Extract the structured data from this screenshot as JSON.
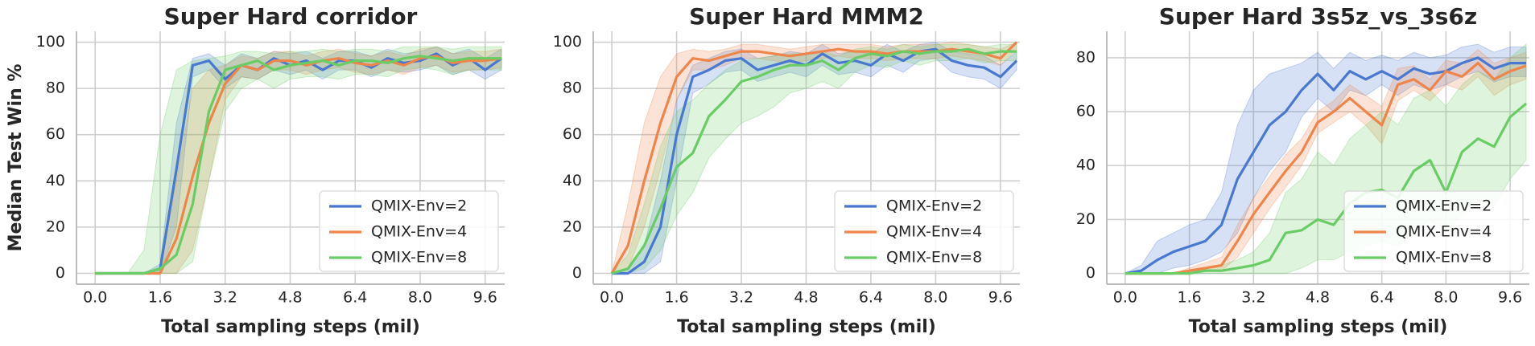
{
  "chart_data": [
    {
      "type": "line",
      "title": "Super Hard corridor",
      "xlabel": "Total sampling steps (mil)",
      "ylabel": "Median Test Win %",
      "x": [
        0,
        0.4,
        0.8,
        1.2,
        1.6,
        2.0,
        2.4,
        2.8,
        3.2,
        3.6,
        4.0,
        4.4,
        4.8,
        5.2,
        5.6,
        6.0,
        6.4,
        6.8,
        7.2,
        7.6,
        8.0,
        8.4,
        8.8,
        9.2,
        9.6,
        10.0
      ],
      "xlim": [
        -0.46,
        10.08
      ],
      "ylim": [
        -4.7,
        104.7
      ],
      "xticks": [
        {
          "value": 0,
          "label": "0.0"
        },
        1.6,
        3.2,
        4.8,
        6.4,
        {
          "value": 8,
          "label": "8.0"
        },
        9.6
      ],
      "yticks": [
        0,
        20,
        40,
        60,
        80,
        100
      ],
      "grid": true,
      "legend": "lower right",
      "series": [
        {
          "name": "QMIX-Env=2",
          "color": "#4878d0",
          "values": [
            0,
            0,
            0,
            0,
            2,
            45,
            90,
            92,
            84,
            90,
            88,
            93,
            90,
            92,
            88,
            92,
            92,
            89,
            93,
            91,
            92,
            95,
            90,
            93,
            88,
            93
          ],
          "lower": [
            0,
            0,
            0,
            0,
            0,
            20,
            85,
            88,
            80,
            85,
            84,
            88,
            86,
            88,
            84,
            88,
            88,
            85,
            88,
            87,
            88,
            90,
            86,
            88,
            84,
            88
          ],
          "upper": [
            0,
            0,
            0,
            0,
            4,
            65,
            93,
            95,
            90,
            95,
            93,
            96,
            95,
            96,
            93,
            96,
            96,
            94,
            97,
            95,
            96,
            98,
            95,
            97,
            93,
            97
          ]
        },
        {
          "name": "QMIX-Env=4",
          "color": "#ee854a",
          "values": [
            0,
            0,
            0,
            0,
            0,
            15,
            42,
            65,
            82,
            90,
            88,
            92,
            92,
            90,
            92,
            93,
            91,
            90,
            92,
            90,
            93,
            94,
            91,
            92,
            92,
            93
          ],
          "lower": [
            0,
            0,
            0,
            0,
            0,
            0,
            10,
            40,
            75,
            85,
            84,
            88,
            88,
            86,
            88,
            89,
            87,
            86,
            88,
            86,
            89,
            90,
            87,
            88,
            88,
            89
          ],
          "upper": [
            0,
            0,
            0,
            0,
            2,
            40,
            80,
            88,
            90,
            94,
            93,
            96,
            96,
            94,
            96,
            97,
            95,
            94,
            96,
            94,
            97,
            98,
            95,
            96,
            96,
            97
          ]
        },
        {
          "name": "QMIX-Env=8",
          "color": "#6acc64",
          "values": [
            0,
            0,
            0,
            0,
            2,
            8,
            30,
            70,
            88,
            90,
            92,
            88,
            90,
            91,
            92,
            90,
            92,
            92,
            91,
            93,
            94,
            93,
            92,
            93,
            93,
            93
          ],
          "lower": [
            0,
            0,
            0,
            0,
            0,
            0,
            5,
            40,
            70,
            80,
            84,
            80,
            84,
            85,
            85,
            84,
            86,
            86,
            85,
            88,
            89,
            88,
            86,
            88,
            88,
            88
          ],
          "upper": [
            0,
            0,
            0,
            10,
            60,
            88,
            92,
            93,
            94,
            96,
            96,
            95,
            96,
            96,
            97,
            96,
            97,
            97,
            96,
            98,
            98,
            98,
            97,
            98,
            98,
            98
          ]
        }
      ]
    },
    {
      "type": "line",
      "title": "Super Hard MMM2",
      "xlabel": "Total sampling steps (mil)",
      "x": [
        0,
        0.4,
        0.8,
        1.2,
        1.6,
        2.0,
        2.4,
        2.8,
        3.2,
        3.6,
        4.0,
        4.4,
        4.8,
        5.2,
        5.6,
        6.0,
        6.4,
        6.8,
        7.2,
        7.6,
        8.0,
        8.4,
        8.8,
        9.2,
        9.6,
        10.0
      ],
      "xlim": [
        -0.46,
        10.08
      ],
      "ylim": [
        -4.7,
        104.7
      ],
      "xticks": [
        {
          "value": 0,
          "label": "0.0"
        },
        1.6,
        3.2,
        4.8,
        6.4,
        {
          "value": 8,
          "label": "8.0"
        },
        9.6
      ],
      "yticks": [
        0,
        20,
        40,
        60,
        80,
        100
      ],
      "grid": true,
      "legend": "lower right",
      "series": [
        {
          "name": "QMIX-Env=2",
          "color": "#4878d0",
          "values": [
            0,
            0,
            5,
            20,
            60,
            85,
            88,
            92,
            93,
            88,
            90,
            92,
            90,
            95,
            91,
            92,
            90,
            95,
            92,
            96,
            97,
            92,
            90,
            89,
            85,
            92
          ],
          "lower": [
            0,
            0,
            0,
            5,
            40,
            78,
            82,
            87,
            88,
            83,
            85,
            87,
            85,
            90,
            86,
            87,
            85,
            90,
            87,
            92,
            93,
            87,
            85,
            84,
            80,
            88
          ],
          "upper": [
            0,
            2,
            12,
            40,
            75,
            90,
            93,
            96,
            97,
            93,
            94,
            96,
            95,
            99,
            95,
            96,
            95,
            99,
            96,
            99,
            100,
            96,
            95,
            94,
            90,
            96
          ]
        },
        {
          "name": "QMIX-Env=4",
          "color": "#ee854a",
          "values": [
            0,
            12,
            40,
            65,
            85,
            93,
            92,
            94,
            96,
            96,
            95,
            94,
            95,
            96,
            97,
            96,
            96,
            95,
            96,
            96,
            96,
            97,
            96,
            95,
            93,
            100
          ],
          "lower": [
            0,
            2,
            20,
            45,
            75,
            88,
            88,
            90,
            93,
            93,
            92,
            91,
            92,
            93,
            94,
            93,
            93,
            92,
            93,
            93,
            93,
            94,
            93,
            92,
            90,
            97
          ],
          "upper": [
            0,
            30,
            65,
            85,
            95,
            97,
            96,
            97,
            99,
            99,
            98,
            97,
            98,
            99,
            99,
            99,
            99,
            98,
            99,
            99,
            99,
            100,
            99,
            98,
            97,
            100
          ]
        },
        {
          "name": "QMIX-Env=8",
          "color": "#6acc64",
          "values": [
            0,
            2,
            12,
            28,
            46,
            52,
            68,
            75,
            83,
            85,
            88,
            90,
            90,
            92,
            88,
            93,
            95,
            94,
            96,
            95,
            96,
            96,
            97,
            95,
            96,
            96
          ],
          "lower": [
            0,
            0,
            2,
            10,
            25,
            35,
            50,
            58,
            65,
            68,
            72,
            78,
            80,
            83,
            80,
            87,
            90,
            89,
            92,
            90,
            92,
            92,
            93,
            91,
            92,
            92
          ],
          "upper": [
            0,
            8,
            30,
            55,
            70,
            75,
            82,
            88,
            92,
            93,
            94,
            95,
            95,
            96,
            94,
            97,
            98,
            97,
            99,
            98,
            99,
            99,
            99,
            98,
            99,
            99
          ]
        }
      ]
    },
    {
      "type": "line",
      "title": "Super Hard 3s5z_vs_3s6z",
      "xlabel": "Total sampling steps (mil)",
      "x": [
        0,
        0.4,
        0.8,
        1.2,
        1.6,
        2.0,
        2.4,
        2.8,
        3.2,
        3.6,
        4.0,
        4.4,
        4.8,
        5.2,
        5.6,
        6.0,
        6.4,
        6.8,
        7.2,
        7.6,
        8.0,
        8.4,
        8.8,
        9.2,
        9.6,
        10.0
      ],
      "xlim": [
        -0.46,
        10.08
      ],
      "ylim": [
        -4,
        89.8
      ],
      "xticks": [
        {
          "value": 0,
          "label": "0.0"
        },
        1.6,
        3.2,
        4.8,
        6.4,
        {
          "value": 8,
          "label": "8.0"
        },
        9.6
      ],
      "yticks": [
        0,
        20,
        40,
        60,
        80
      ],
      "grid": true,
      "legend": "lower right",
      "series": [
        {
          "name": "QMIX-Env=2",
          "color": "#4878d0",
          "values": [
            0,
            1,
            5,
            8,
            10,
            12,
            18,
            35,
            45,
            55,
            60,
            68,
            74,
            68,
            75,
            72,
            75,
            72,
            76,
            74,
            75,
            78,
            80,
            76,
            78,
            78
          ],
          "lower": [
            0,
            0,
            0,
            2,
            3,
            5,
            8,
            15,
            28,
            38,
            45,
            58,
            65,
            60,
            68,
            66,
            70,
            66,
            70,
            68,
            70,
            73,
            75,
            71,
            73,
            73
          ],
          "upper": [
            0,
            3,
            12,
            15,
            18,
            20,
            30,
            55,
            68,
            74,
            76,
            78,
            82,
            76,
            82,
            79,
            81,
            79,
            82,
            80,
            81,
            84,
            85,
            82,
            84,
            84
          ]
        },
        {
          "name": "QMIX-Env=4",
          "color": "#ee854a",
          "values": [
            0,
            0,
            0,
            0,
            1,
            2,
            3,
            12,
            22,
            30,
            38,
            45,
            56,
            60,
            65,
            60,
            55,
            70,
            72,
            68,
            75,
            73,
            78,
            72,
            75,
            77
          ],
          "lower": [
            0,
            0,
            0,
            0,
            0,
            1,
            1,
            6,
            15,
            24,
            32,
            40,
            52,
            56,
            60,
            55,
            48,
            64,
            68,
            64,
            70,
            68,
            73,
            66,
            70,
            72
          ],
          "upper": [
            0,
            0,
            0,
            0,
            2,
            4,
            6,
            18,
            28,
            36,
            44,
            50,
            60,
            64,
            70,
            66,
            62,
            76,
            77,
            72,
            79,
            78,
            83,
            78,
            80,
            82
          ]
        },
        {
          "name": "QMIX-Env=8",
          "color": "#6acc64",
          "values": [
            0,
            0,
            0,
            0,
            0,
            1,
            1,
            2,
            3,
            5,
            15,
            16,
            20,
            18,
            26,
            30,
            31,
            28,
            38,
            42,
            30,
            45,
            50,
            47,
            58,
            63
          ],
          "lower": [
            0,
            0,
            0,
            0,
            0,
            0,
            0,
            0,
            0,
            0,
            0,
            2,
            5,
            5,
            8,
            10,
            12,
            10,
            15,
            20,
            15,
            22,
            28,
            25,
            35,
            42
          ],
          "upper": [
            0,
            0,
            0,
            0,
            0,
            2,
            3,
            5,
            8,
            15,
            30,
            35,
            45,
            40,
            50,
            55,
            60,
            55,
            65,
            68,
            62,
            70,
            75,
            72,
            80,
            85
          ]
        }
      ]
    }
  ]
}
